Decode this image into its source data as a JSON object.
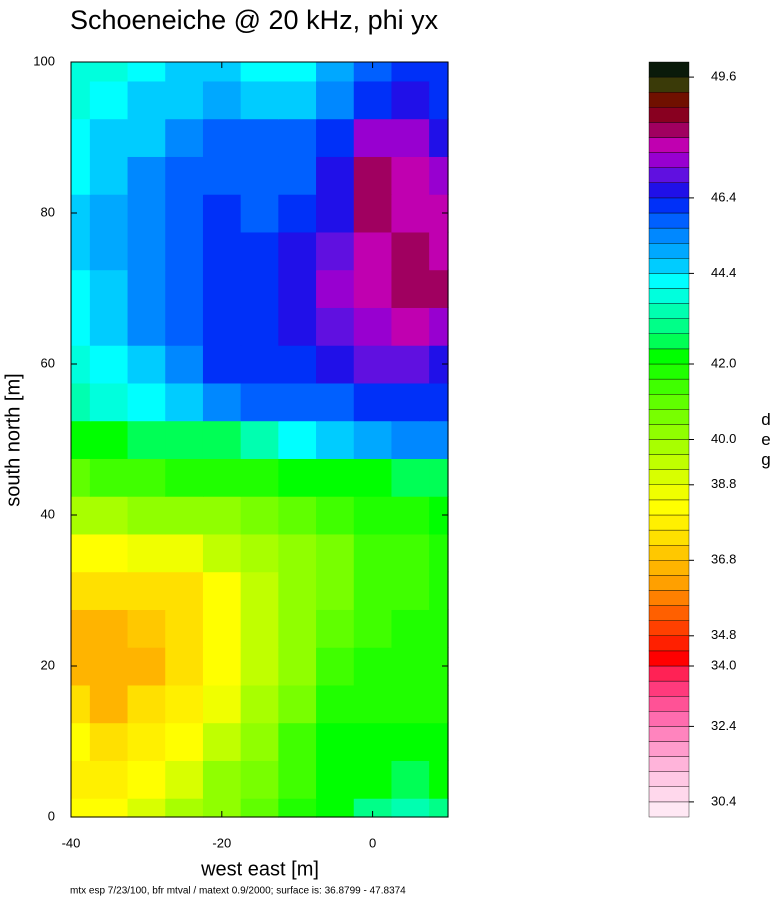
{
  "chart_data": {
    "type": "contour",
    "title": "Schoeneiche @ 20 kHz, phi yx",
    "x_label": "west east [m]",
    "y_label": "south north [m]",
    "footnote": "mtx esp 7/23/100, bfr mtval / matext 0.9/2000; surface is: 36.8799 - 47.8374",
    "xlim": [
      -40,
      10
    ],
    "ylim": [
      0,
      100
    ],
    "xticks": [
      -40,
      -20,
      0
    ],
    "yticks": [
      0,
      20,
      40,
      60,
      80,
      100
    ],
    "x": [
      -40,
      -35,
      -30,
      -25,
      -20,
      -15,
      -10,
      -5,
      0,
      5,
      10
    ],
    "y": [
      0,
      5,
      10,
      15,
      20,
      25,
      30,
      35,
      40,
      45,
      50,
      55,
      60,
      65,
      70,
      75,
      80,
      85,
      90,
      95,
      100
    ],
    "z": [
      [
        38.0,
        38.0,
        39.0,
        39.6,
        40.4,
        41.0,
        41.6,
        42.0,
        43.0,
        43.2,
        43.0
      ],
      [
        37.6,
        37.6,
        38.0,
        39.0,
        40.0,
        40.8,
        41.4,
        42.0,
        42.4,
        42.6,
        42.4
      ],
      [
        38.0,
        37.2,
        37.6,
        38.4,
        39.4,
        40.4,
        41.2,
        42.0,
        42.0,
        42.0,
        42.0
      ],
      [
        37.2,
        36.8,
        37.2,
        37.8,
        38.8,
        39.8,
        40.8,
        41.6,
        41.8,
        41.8,
        41.8
      ],
      [
        36.8,
        36.6,
        36.8,
        37.4,
        38.4,
        39.4,
        40.4,
        41.2,
        41.6,
        41.6,
        41.6
      ],
      [
        36.8,
        36.8,
        37.0,
        37.2,
        38.2,
        39.2,
        40.2,
        41.0,
        41.4,
        41.6,
        41.6
      ],
      [
        37.2,
        37.4,
        37.4,
        37.4,
        38.2,
        39.2,
        40.2,
        40.8,
        41.2,
        41.4,
        41.6
      ],
      [
        38.2,
        38.4,
        38.6,
        38.8,
        39.2,
        39.8,
        40.4,
        40.8,
        41.2,
        41.4,
        41.6
      ],
      [
        39.6,
        39.8,
        40.0,
        40.2,
        40.4,
        40.6,
        41.0,
        41.4,
        41.6,
        41.8,
        42.0
      ],
      [
        41.0,
        41.2,
        41.4,
        41.6,
        41.6,
        41.8,
        42.0,
        42.2,
        42.4,
        42.6,
        42.8
      ],
      [
        42.4,
        42.4,
        42.6,
        42.8,
        42.6,
        43.2,
        44.0,
        44.8,
        45.0,
        45.2,
        45.2
      ],
      [
        43.2,
        43.6,
        44.0,
        44.6,
        45.4,
        45.8,
        45.8,
        45.8,
        46.0,
        46.2,
        46.2
      ],
      [
        43.8,
        44.2,
        44.8,
        45.4,
        46.0,
        46.0,
        46.2,
        46.6,
        47.0,
        47.0,
        46.8
      ],
      [
        44.0,
        44.6,
        45.2,
        45.8,
        46.0,
        46.2,
        46.4,
        47.0,
        47.4,
        47.6,
        47.4
      ],
      [
        44.2,
        44.8,
        45.4,
        45.8,
        46.0,
        46.2,
        46.6,
        47.2,
        47.8,
        48.0,
        48.0
      ],
      [
        44.4,
        45.0,
        45.4,
        45.6,
        46.0,
        46.0,
        46.4,
        47.0,
        47.8,
        48.0,
        47.8
      ],
      [
        44.4,
        45.0,
        45.4,
        45.8,
        46.0,
        45.8,
        46.0,
        46.8,
        48.0,
        47.8,
        47.8
      ],
      [
        44.2,
        44.8,
        45.2,
        45.6,
        45.8,
        45.6,
        45.8,
        46.4,
        48.2,
        47.8,
        47.4
      ],
      [
        44.0,
        44.4,
        44.8,
        45.2,
        45.6,
        45.6,
        45.8,
        46.2,
        47.2,
        47.2,
        46.8
      ],
      [
        43.8,
        44.0,
        44.4,
        44.8,
        45.0,
        44.6,
        44.8,
        45.4,
        46.2,
        46.6,
        46.2
      ],
      [
        43.6,
        43.8,
        44.2,
        44.6,
        44.4,
        44.0,
        44.0,
        45.0,
        45.6,
        46.0,
        46.0
      ]
    ],
    "colorbar": {
      "label": "deg",
      "clim": [
        30,
        50
      ],
      "colors": [
        "#ffe8f4",
        "#ffd8ec",
        "#ffc8e4",
        "#ffb4da",
        "#ff9ccc",
        "#ff84be",
        "#ff6cae",
        "#ff5296",
        "#ff3a7c",
        "#ff2255",
        "#ff0000",
        "#ff2000",
        "#ff4000",
        "#ff6000",
        "#ff8000",
        "#ffa000",
        "#ffb400",
        "#ffc800",
        "#ffe000",
        "#fff000",
        "#ffff00",
        "#f0ff00",
        "#d8ff00",
        "#c0ff00",
        "#a8ff00",
        "#90ff00",
        "#78ff00",
        "#60ff00",
        "#40ff00",
        "#20ff00",
        "#00ff00",
        "#00ff55",
        "#00ff88",
        "#00ffb0",
        "#00ffdd",
        "#00ffff",
        "#00ccff",
        "#00a8ff",
        "#0088ff",
        "#0060ff",
        "#0030f8",
        "#2010e8",
        "#6010e0",
        "#9800d0",
        "#c000b0",
        "#a00060",
        "#880020",
        "#701000",
        "#3a3a08",
        "#0a1a0a"
      ],
      "ticks": [
        30.4,
        32.4,
        {
          "value": 34,
          "label": "34.0"
        },
        34.8,
        36.8,
        38.8,
        {
          "value": 40,
          "label": "40.0"
        },
        {
          "value": 42,
          "label": "42.0"
        },
        44.4,
        46.4,
        49.6
      ]
    }
  }
}
